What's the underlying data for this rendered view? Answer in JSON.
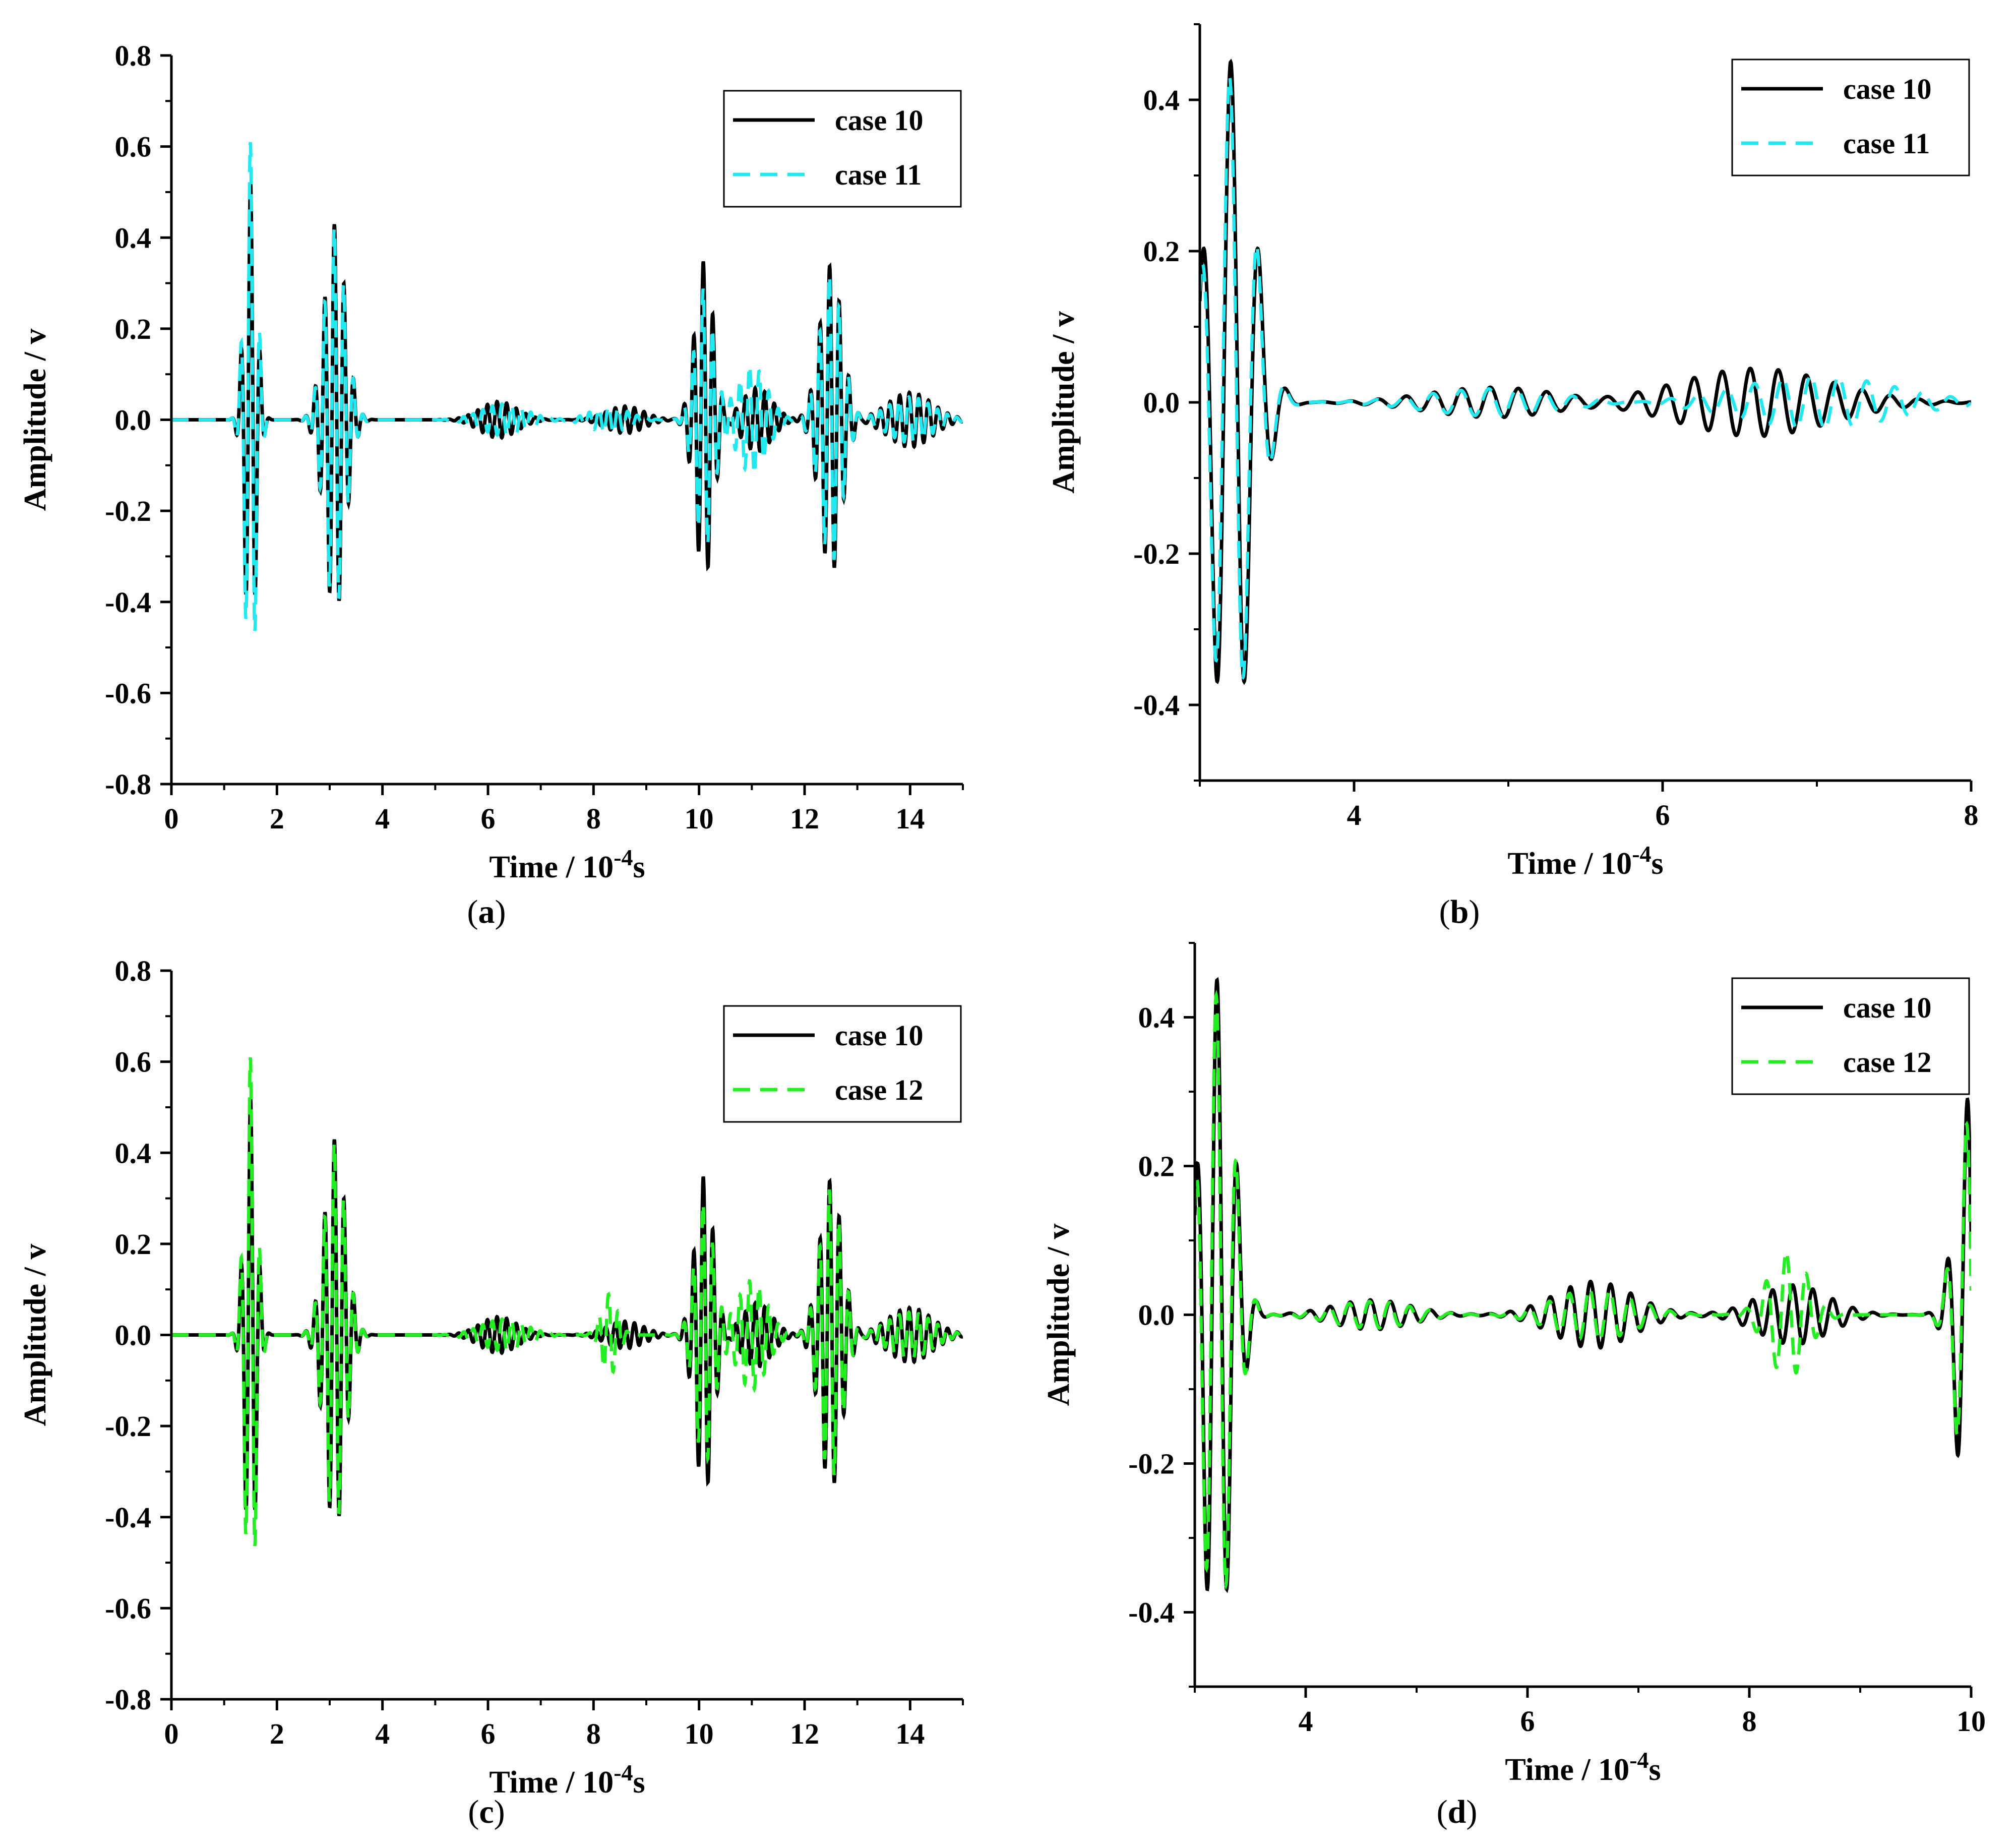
{
  "chart_data": [
    {
      "panel": "a",
      "caption": "a",
      "type": "line",
      "xlabel": "Time / 10",
      "xlabel_sup": "-4",
      "xlabel_suffix": "s",
      "ylabel": "Amplitude / v",
      "xlim": [
        0,
        15
      ],
      "ylim": [
        -0.8,
        0.8
      ],
      "xticks": [
        0,
        2,
        4,
        6,
        8,
        10,
        12,
        14
      ],
      "yticks": [
        -0.8,
        -0.6,
        -0.4,
        -0.2,
        0.0,
        0.2,
        0.4,
        0.6,
        0.8
      ],
      "ytick_labels": [
        "-0.8",
        "-0.6",
        "-0.4",
        "-0.2",
        "0.0",
        "0.2",
        "0.4",
        "0.6",
        "0.8"
      ],
      "legend_position": "top-right",
      "series": [
        {
          "name": "case 10",
          "color": "#000000",
          "dash": "solid",
          "packets": [
            {
              "center": 1.5,
              "width": 0.16,
              "amp": 0.52,
              "freq": 5.5,
              "phase": 0.0
            },
            {
              "center": 3.1,
              "width": 0.28,
              "amp": 0.43,
              "freq": 5.5,
              "phase": 0.4
            },
            {
              "center": 6.2,
              "width": 0.5,
              "amp": 0.04,
              "freq": 5.5,
              "phase": 1.0
            },
            {
              "center": 8.6,
              "width": 0.5,
              "amp": 0.03,
              "freq": 5.5,
              "phase": 0.2
            },
            {
              "center": 10.1,
              "width": 0.25,
              "amp": 0.35,
              "freq": 5.5,
              "phase": 0.7
            },
            {
              "center": 11.1,
              "width": 0.4,
              "amp": 0.07,
              "freq": 5.5,
              "phase": 1.3
            },
            {
              "center": 12.5,
              "width": 0.3,
              "amp": 0.34,
              "freq": 5.5,
              "phase": 0.9
            },
            {
              "center": 14.0,
              "width": 0.6,
              "amp": 0.06,
              "freq": 5.5,
              "phase": 0.5
            }
          ]
        },
        {
          "name": "case 11",
          "color": "#22e8f0",
          "dash": "dashed",
          "packets": [
            {
              "center": 1.5,
              "width": 0.16,
              "amp": 0.61,
              "freq": 5.5,
              "phase": 0.15
            },
            {
              "center": 3.1,
              "width": 0.28,
              "amp": 0.42,
              "freq": 5.5,
              "phase": 0.5
            },
            {
              "center": 6.3,
              "width": 0.6,
              "amp": 0.035,
              "freq": 5.5,
              "phase": 1.2
            },
            {
              "center": 8.3,
              "width": 0.5,
              "amp": 0.03,
              "freq": 5.5,
              "phase": 0.6
            },
            {
              "center": 10.1,
              "width": 0.25,
              "amp": 0.29,
              "freq": 5.5,
              "phase": 0.85
            },
            {
              "center": 11.0,
              "width": 0.4,
              "amp": 0.12,
              "freq": 5.5,
              "phase": 1.5
            },
            {
              "center": 12.5,
              "width": 0.3,
              "amp": 0.32,
              "freq": 5.5,
              "phase": 1.05
            },
            {
              "center": 14.0,
              "width": 0.6,
              "amp": 0.05,
              "freq": 5.5,
              "phase": 0.8
            }
          ]
        }
      ]
    },
    {
      "panel": "b",
      "caption": "b",
      "type": "line",
      "xlabel": "Time / 10",
      "xlabel_sup": "-4",
      "xlabel_suffix": "s",
      "ylabel": "Amplitude / v",
      "xlim": [
        3.0,
        8.0
      ],
      "ylim": [
        -0.5,
        0.5
      ],
      "xticks": [
        4,
        6,
        8
      ],
      "yticks": [
        -0.4,
        -0.2,
        0.0,
        0.2,
        0.4
      ],
      "ytick_labels": [
        "-0.4",
        "-0.2",
        "0.0",
        "0.2",
        "0.4"
      ],
      "legend_position": "top-right",
      "series": [
        {
          "name": "case 10",
          "color": "#000000",
          "dash": "solid",
          "packets": [
            {
              "center": 3.2,
              "width": 0.2,
              "amp": 0.45,
              "freq": 5.5,
              "phase": 0.0
            },
            {
              "center": 4.9,
              "width": 0.6,
              "amp": 0.02,
              "freq": 5.5,
              "phase": 0.6
            },
            {
              "center": 6.6,
              "width": 0.7,
              "amp": 0.045,
              "freq": 5.5,
              "phase": 1.1
            }
          ]
        },
        {
          "name": "case 11",
          "color": "#22e8f0",
          "dash": "dashed",
          "packets": [
            {
              "center": 3.2,
              "width": 0.2,
              "amp": 0.43,
              "freq": 5.5,
              "phase": 0.25
            },
            {
              "center": 4.9,
              "width": 0.6,
              "amp": 0.018,
              "freq": 5.5,
              "phase": 0.9
            },
            {
              "center": 7.0,
              "width": 0.7,
              "amp": 0.035,
              "freq": 5.5,
              "phase": 1.4
            }
          ]
        }
      ]
    },
    {
      "panel": "c",
      "caption": "c",
      "type": "line",
      "xlabel": "Time / 10",
      "xlabel_sup": "-4",
      "xlabel_suffix": "s",
      "ylabel": "Amplitude / v",
      "xlim": [
        0,
        15
      ],
      "ylim": [
        -0.8,
        0.8
      ],
      "xticks": [
        0,
        2,
        4,
        6,
        8,
        10,
        12,
        14
      ],
      "yticks": [
        -0.8,
        -0.6,
        -0.4,
        -0.2,
        0.0,
        0.2,
        0.4,
        0.6,
        0.8
      ],
      "ytick_labels": [
        "-0.8",
        "-0.6",
        "-0.4",
        "-0.2",
        "0.0",
        "0.2",
        "0.4",
        "0.6",
        "0.8"
      ],
      "legend_position": "top-right",
      "series": [
        {
          "name": "case 10",
          "color": "#000000",
          "dash": "solid",
          "packets": [
            {
              "center": 1.5,
              "width": 0.16,
              "amp": 0.52,
              "freq": 5.5,
              "phase": 0.0
            },
            {
              "center": 3.1,
              "width": 0.28,
              "amp": 0.43,
              "freq": 5.5,
              "phase": 0.4
            },
            {
              "center": 6.2,
              "width": 0.5,
              "amp": 0.04,
              "freq": 5.5,
              "phase": 1.0
            },
            {
              "center": 8.6,
              "width": 0.5,
              "amp": 0.03,
              "freq": 5.5,
              "phase": 0.2
            },
            {
              "center": 10.1,
              "width": 0.25,
              "amp": 0.35,
              "freq": 5.5,
              "phase": 0.7
            },
            {
              "center": 11.1,
              "width": 0.4,
              "amp": 0.07,
              "freq": 5.5,
              "phase": 1.3
            },
            {
              "center": 12.5,
              "width": 0.3,
              "amp": 0.34,
              "freq": 5.5,
              "phase": 0.9
            },
            {
              "center": 14.0,
              "width": 0.6,
              "amp": 0.06,
              "freq": 5.5,
              "phase": 0.5
            }
          ]
        },
        {
          "name": "case 12",
          "color": "#22ee22",
          "dash": "dashed",
          "packets": [
            {
              "center": 1.5,
              "width": 0.16,
              "amp": 0.61,
              "freq": 5.5,
              "phase": 0.15
            },
            {
              "center": 3.1,
              "width": 0.28,
              "amp": 0.42,
              "freq": 5.5,
              "phase": 0.5
            },
            {
              "center": 6.3,
              "width": 0.6,
              "amp": 0.035,
              "freq": 5.5,
              "phase": 1.2
            },
            {
              "center": 8.3,
              "width": 0.22,
              "amp": 0.09,
              "freq": 5.5,
              "phase": 0.6
            },
            {
              "center": 10.1,
              "width": 0.25,
              "amp": 0.29,
              "freq": 5.5,
              "phase": 0.85
            },
            {
              "center": 11.0,
              "width": 0.4,
              "amp": 0.12,
              "freq": 5.5,
              "phase": 1.5
            },
            {
              "center": 12.5,
              "width": 0.3,
              "amp": 0.32,
              "freq": 5.5,
              "phase": 1.05
            },
            {
              "center": 14.0,
              "width": 0.6,
              "amp": 0.05,
              "freq": 5.5,
              "phase": 0.8
            }
          ]
        }
      ]
    },
    {
      "panel": "d",
      "caption": "d",
      "type": "line",
      "xlabel": "Time / 10",
      "xlabel_sup": "-4",
      "xlabel_suffix": "s",
      "ylabel": "Amplitude / v",
      "xlim": [
        3.0,
        10.0
      ],
      "ylim": [
        -0.5,
        0.5
      ],
      "xticks": [
        4,
        6,
        8,
        10
      ],
      "yticks": [
        -0.4,
        -0.2,
        0.0,
        0.2,
        0.4
      ],
      "ytick_labels": [
        "-0.4",
        "-0.2",
        "0.0",
        "0.2",
        "0.4"
      ],
      "legend_position": "top-right",
      "series": [
        {
          "name": "case 10",
          "color": "#000000",
          "dash": "solid",
          "packets": [
            {
              "center": 3.2,
              "width": 0.2,
              "amp": 0.45,
              "freq": 5.5,
              "phase": 0.0
            },
            {
              "center": 4.6,
              "width": 0.5,
              "amp": 0.02,
              "freq": 5.5,
              "phase": 0.6
            },
            {
              "center": 6.6,
              "width": 0.5,
              "amp": 0.045,
              "freq": 5.5,
              "phase": 1.1
            },
            {
              "center": 8.4,
              "width": 0.45,
              "amp": 0.04,
              "freq": 5.5,
              "phase": 0.3
            },
            {
              "center": 10.0,
              "width": 0.18,
              "amp": 0.3,
              "freq": 5.5,
              "phase": 1.2
            }
          ]
        },
        {
          "name": "case 12",
          "color": "#22ee22",
          "dash": "dashed",
          "packets": [
            {
              "center": 3.2,
              "width": 0.2,
              "amp": 0.43,
              "freq": 5.5,
              "phase": 0.25
            },
            {
              "center": 4.6,
              "width": 0.5,
              "amp": 0.018,
              "freq": 5.5,
              "phase": 0.9
            },
            {
              "center": 6.6,
              "width": 0.5,
              "amp": 0.035,
              "freq": 5.5,
              "phase": 1.4
            },
            {
              "center": 8.35,
              "width": 0.25,
              "amp": 0.085,
              "freq": 5.5,
              "phase": 0.6
            },
            {
              "center": 10.0,
              "width": 0.18,
              "amp": 0.27,
              "freq": 5.5,
              "phase": 1.45
            }
          ]
        }
      ]
    }
  ]
}
